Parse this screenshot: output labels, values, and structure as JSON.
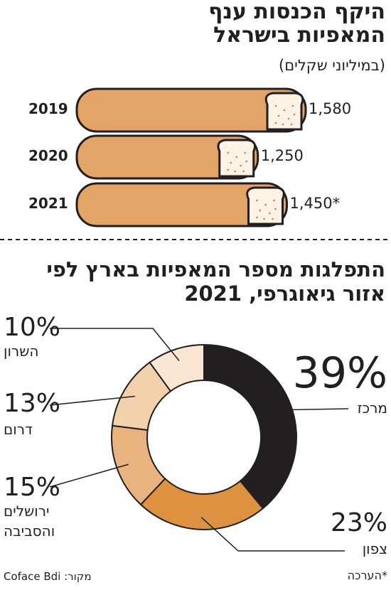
{
  "chart_data": [
    {
      "type": "bar",
      "title": "היקף הכנסות ענף המאפיות בישראל",
      "subtitle": "(במיליוני שקלים)",
      "categories": [
        "2019",
        "2020",
        "2021"
      ],
      "values": [
        1580,
        1250,
        1450
      ],
      "value_labels": [
        "1,580",
        "1,250",
        "1,450*"
      ],
      "color": "#e3a468",
      "note": "*הערכה"
    },
    {
      "type": "pie",
      "title": "התפלגות מספר המאפיות בארץ לפי אזור גיאוגרפי, 2021",
      "categories": [
        "מרכז",
        "צפון",
        "ירושלים והסביבה",
        "דרום",
        "השרון"
      ],
      "values": [
        39,
        23,
        15,
        13,
        10
      ],
      "value_labels": [
        "39%",
        "23%",
        "15%",
        "13%",
        "10%"
      ],
      "colors": [
        "#231f20",
        "#de9141",
        "#e9b37f",
        "#f3d1ad",
        "#f9e7d3"
      ],
      "source": "מקור: Coface Bdi"
    }
  ]
}
